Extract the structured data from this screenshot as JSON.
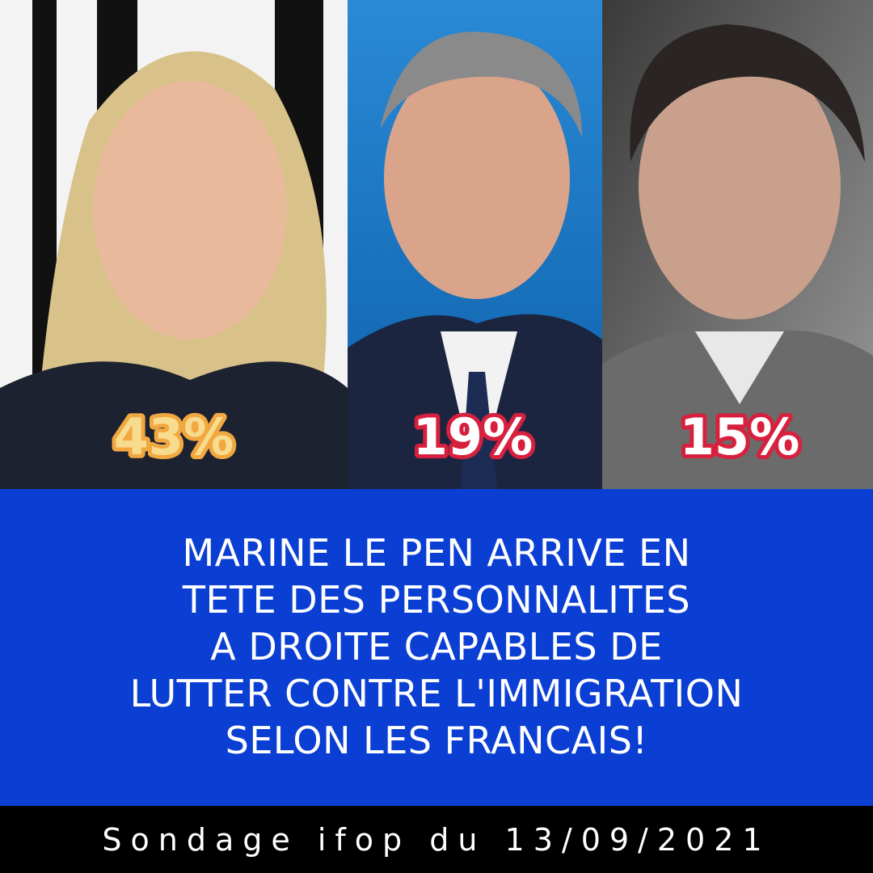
{
  "panels": [
    {
      "percent": "43%"
    },
    {
      "percent": "19%"
    },
    {
      "percent": "15%"
    }
  ],
  "headline": {
    "lines": [
      "MARINE LE PEN ARRIVE EN",
      "TETE DES PERSONNALITES",
      "A DROITE CAPABLES DE",
      "LUTTER CONTRE L'IMMIGRATION",
      "SELON LES FRANCAIS!"
    ]
  },
  "footer": {
    "text": "Sondage ifop du 13/09/2021"
  }
}
